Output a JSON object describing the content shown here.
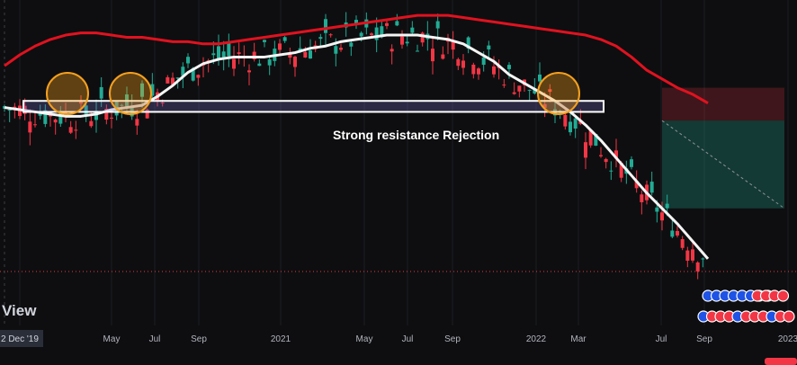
{
  "chart_data": {
    "type": "candlestick",
    "x_tick_labels": [
      "2 Dec '19",
      "May",
      "Jul",
      "Sep",
      "2021",
      "May",
      "Jul",
      "Sep",
      "2022",
      "Mar",
      "Jul",
      "Sep",
      "2023"
    ],
    "annotation": "Strong resistance Rejection",
    "watermark": "View",
    "ma_long": {
      "color": "#e0121f",
      "values": [
        120,
        125,
        129,
        132,
        134,
        135,
        135,
        134,
        133,
        133,
        132,
        131,
        131,
        130,
        130,
        131,
        132,
        133,
        134,
        135,
        136,
        137,
        138,
        139,
        140,
        141,
        142,
        143,
        143,
        143,
        142,
        141,
        140,
        139,
        138,
        137,
        136,
        135,
        134,
        132,
        129,
        124,
        118,
        114,
        110,
        107,
        103
      ]
    },
    "ma_short": {
      "color": "#f5f5f5",
      "values": [
        101,
        100,
        99,
        98,
        97,
        97,
        98,
        100,
        101,
        102,
        106,
        111,
        117,
        121,
        123,
        124,
        124,
        124,
        125,
        126,
        128,
        129,
        131,
        132,
        133,
        134,
        134,
        134,
        133,
        132,
        130,
        126,
        122,
        116,
        112,
        108,
        104,
        99,
        93,
        86,
        78,
        70,
        62,
        55,
        48,
        40,
        32
      ]
    },
    "series_colors": {
      "up": "#22ab94",
      "down": "#f23645"
    },
    "resistance_zone": {
      "start_index": 0,
      "end_index": 43,
      "top": 104,
      "bottom": 99
    },
    "rejection_circles": [
      5,
      10,
      42
    ],
    "trade": {
      "start_index": 43,
      "end_index": 51,
      "entry": 95,
      "stop": 110,
      "target": 55
    }
  },
  "theme": {
    "background": "#0e0e10",
    "grid": "#1b1d24",
    "reference_line": "#e73a42"
  }
}
